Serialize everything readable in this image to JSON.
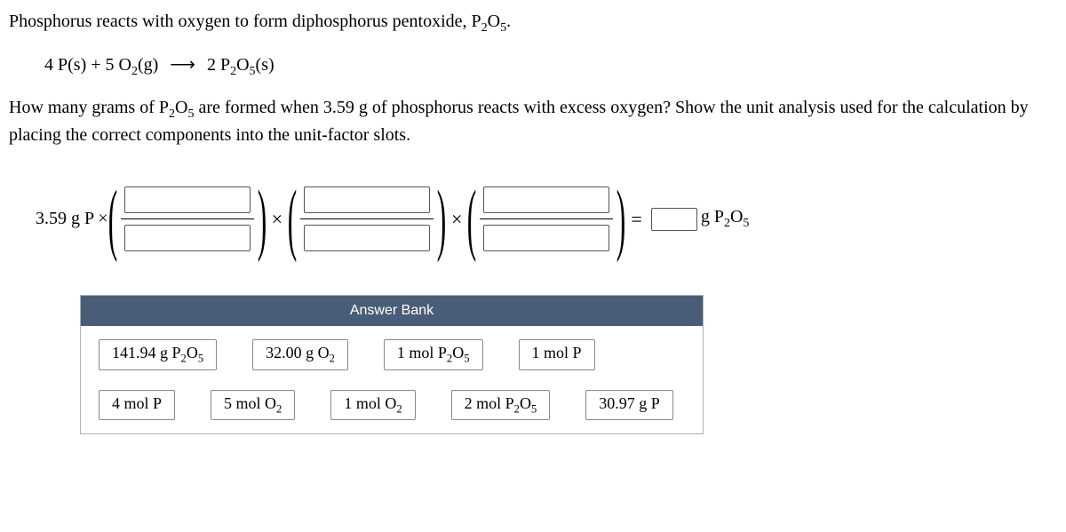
{
  "intro": {
    "line1_a": "Phosphorus reacts with oxygen to form diphosphorus pentoxide, P",
    "line1_sub1": "2",
    "line1_b": "O",
    "line1_sub2": "5",
    "line1_c": "."
  },
  "equation": {
    "lhs_a": "4 P(s) + 5 O",
    "lhs_sub": "2",
    "lhs_b": "(g)",
    "arrow_glyph": "⟶",
    "rhs_a": "2 P",
    "rhs_sub1": "2",
    "rhs_b": "O",
    "rhs_sub2": "5",
    "rhs_c": "(s)"
  },
  "question": {
    "a": "How many grams of P",
    "sub1": "2",
    "b": "O",
    "sub2": "5",
    "c": " are formed when 3.59 g  of phosphorus reacts with excess oxygen? Show the unit analysis used for the calculation by placing the correct components into the unit-factor slots."
  },
  "calc": {
    "start": "3.59 g P ×",
    "mult": "×",
    "equals": "=",
    "result_unit_a": "g P",
    "result_sub1": "2",
    "result_unit_b": "O",
    "result_sub2": "5"
  },
  "bank": {
    "header": "Answer Bank",
    "tiles": [
      {
        "a": "141.94 g P",
        "s1": "2",
        "b": "O",
        "s2": "5"
      },
      {
        "a": "32.00 g O",
        "s1": "2",
        "b": "",
        "s2": ""
      },
      {
        "a": "1 mol P",
        "s1": "2",
        "b": "O",
        "s2": "5"
      },
      {
        "a": "1 mol P",
        "s1": "",
        "b": "",
        "s2": ""
      },
      {
        "a": "4 mol P",
        "s1": "",
        "b": "",
        "s2": ""
      },
      {
        "a": "5 mol O",
        "s1": "2",
        "b": "",
        "s2": ""
      },
      {
        "a": "1 mol O",
        "s1": "2",
        "b": "",
        "s2": ""
      },
      {
        "a": "2 mol P",
        "s1": "2",
        "b": "O",
        "s2": "5"
      },
      {
        "a": "30.97 g P",
        "s1": "",
        "b": "",
        "s2": ""
      }
    ]
  },
  "style": {
    "bank_header_bg": "#4a5d78",
    "bank_border": "#b0b0b0"
  }
}
